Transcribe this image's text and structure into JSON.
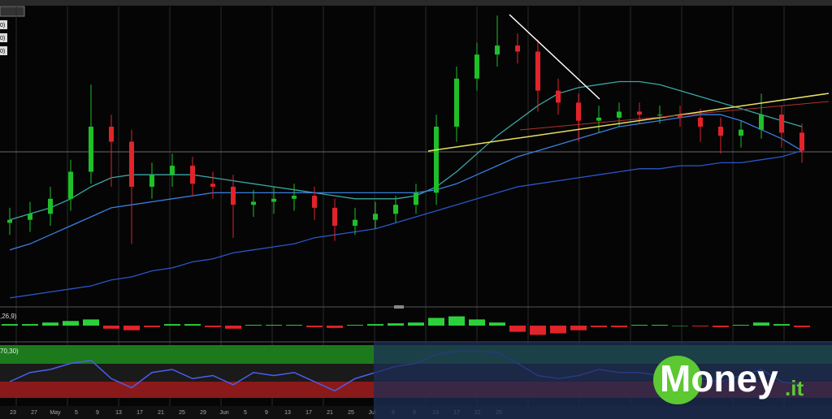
{
  "chart_data": [
    {
      "type": "candlestick",
      "open": [
        28,
        29,
        31,
        36,
        45,
        60,
        55,
        40,
        44,
        47,
        41,
        40,
        34,
        35,
        36,
        37,
        33,
        27,
        29,
        31,
        34,
        38,
        60,
        76,
        84,
        87,
        85,
        72,
        68,
        62,
        63,
        65,
        64,
        64,
        63,
        60,
        57,
        59,
        64,
        58
      ],
      "close": [
        29,
        31,
        36,
        45,
        60,
        55,
        40,
        44,
        47,
        41,
        40,
        34,
        35,
        36,
        37,
        33,
        27,
        29,
        31,
        34,
        38,
        60,
        76,
        84,
        87,
        85,
        72,
        68,
        62,
        63,
        65,
        64,
        64,
        63,
        60,
        57,
        59,
        64,
        58,
        52
      ],
      "high": [
        33,
        35,
        40,
        49,
        74,
        64,
        59,
        48,
        51,
        50,
        45,
        44,
        39,
        40,
        41,
        40,
        36,
        33,
        35,
        37,
        41,
        64,
        80,
        88,
        97,
        91,
        89,
        76,
        71,
        67,
        68,
        68,
        67,
        67,
        66,
        63,
        62,
        71,
        67,
        61
      ],
      "low": [
        24,
        25,
        27,
        32,
        41,
        40,
        21,
        36,
        40,
        37,
        36,
        23,
        30,
        31,
        32,
        29,
        22,
        24,
        26,
        28,
        31,
        34,
        55,
        72,
        80,
        81,
        65,
        64,
        55,
        58,
        60,
        61,
        61,
        60,
        55,
        51,
        53,
        56,
        53,
        48
      ],
      "up_color": "#1fbf2a",
      "down_color": "#e0242a",
      "averages": [
        {
          "color": "#3aa6a6",
          "values": [
            29,
            31,
            33,
            36,
            40,
            43,
            44,
            44,
            44,
            44,
            43,
            42,
            41,
            40,
            39,
            38,
            37,
            36,
            36,
            36,
            37,
            40,
            45,
            51,
            57,
            62,
            67,
            71,
            73,
            74,
            75,
            75,
            74,
            72,
            70,
            68,
            66,
            64,
            62,
            60
          ]
        },
        {
          "color": "#3a7fe0",
          "values": [
            19,
            21,
            24,
            27,
            30,
            33,
            34,
            35,
            36,
            37,
            38,
            38,
            38,
            38,
            38,
            38,
            38,
            38,
            38,
            38,
            38,
            39,
            41,
            44,
            47,
            50,
            52,
            54,
            56,
            58,
            60,
            61,
            62,
            63,
            64,
            64,
            62,
            59,
            56,
            52
          ]
        },
        {
          "color": "#2a56c8",
          "values": [
            3,
            4,
            5,
            6,
            7,
            9,
            10,
            12,
            13,
            15,
            16,
            18,
            19,
            20,
            21,
            23,
            24,
            25,
            26,
            28,
            30,
            32,
            34,
            36,
            38,
            40,
            41,
            42,
            43,
            44,
            45,
            46,
            46,
            47,
            47,
            48,
            48,
            49,
            50,
            52
          ]
        }
      ],
      "ylim": [
        0,
        100
      ],
      "indicator_labels": [
        "0)",
        "0)",
        "0)"
      ]
    },
    {
      "type": "bar",
      "label": ",26,9)",
      "values": [
        0.1,
        0.1,
        0.2,
        0.3,
        0.4,
        -0.2,
        -0.3,
        -0.1,
        0.1,
        0.1,
        -0.1,
        -0.2,
        0.05,
        0.05,
        0.05,
        -0.1,
        -0.15,
        0.05,
        0.1,
        0.15,
        0.2,
        0.5,
        0.6,
        0.4,
        0.2,
        -0.4,
        -0.6,
        -0.5,
        -0.3,
        -0.1,
        -0.1,
        0.05,
        0.05,
        0.0,
        -0.05,
        -0.1,
        0.05,
        0.2,
        0.1,
        -0.1
      ],
      "up_color": "#2bd13a",
      "down_color": "#e0242a",
      "ylim": [
        -1,
        1
      ]
    },
    {
      "type": "line",
      "label": "70,30)",
      "values": [
        40,
        55,
        60,
        70,
        75,
        45,
        30,
        55,
        60,
        45,
        50,
        35,
        55,
        50,
        55,
        40,
        25,
        45,
        55,
        65,
        70,
        85,
        90,
        90,
        88,
        70,
        50,
        45,
        50,
        60,
        55,
        55,
        50,
        50,
        45,
        40,
        50,
        60,
        40,
        35
      ],
      "color": "#4a5ff0",
      "ylim": [
        0,
        100
      ]
    }
  ],
  "x_labels": [
    "23",
    "27",
    "May",
    "5",
    "9",
    "13",
    "17",
    "21",
    "25",
    "29",
    "Jun",
    "5",
    "9",
    "13",
    "17",
    "21",
    "25",
    "Jul",
    "5",
    "9",
    "13",
    "17",
    "21",
    "25"
  ],
  "logo": {
    "main": "Money",
    "suffix": ".it"
  }
}
